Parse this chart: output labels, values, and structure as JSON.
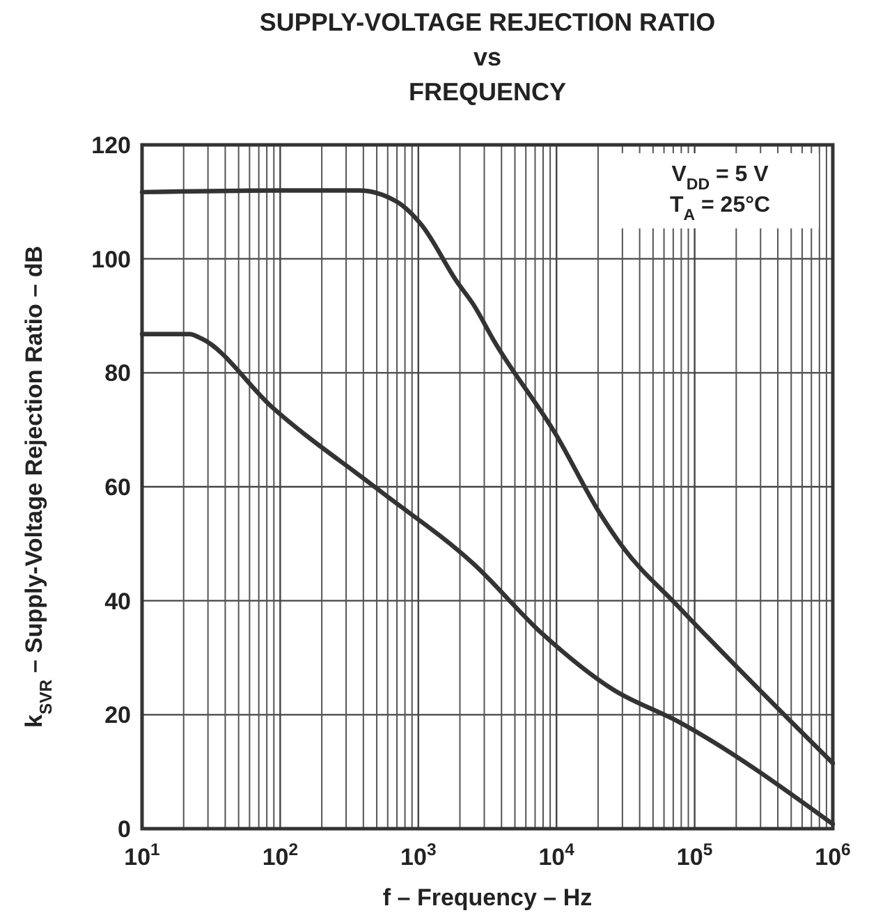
{
  "chart_data": {
    "type": "line",
    "title": "SUPPLY-VOLTAGE REJECTION RATIO\nvs\nFREQUENCY",
    "xlabel": "f – Frequency – Hz",
    "ylabel": "k$_{SVR}$ – Supply-Voltage Rejection Ratio – dB",
    "annotations": [
      "V$_{DD}$ = 5 V",
      "T$_{A}$ = 25°C"
    ],
    "log": "x",
    "grid": true,
    "line_style": "solid",
    "xlim": [
      10,
      1000000
    ],
    "ylim": [
      0,
      120
    ],
    "xticks": [
      {
        "value": 10,
        "label": "10$^{1}$"
      },
      {
        "value": 100,
        "label": "10$^{2}$"
      },
      {
        "value": 1000,
        "label": "10$^{3}$"
      },
      {
        "value": 10000,
        "label": "10$^{4}$"
      },
      {
        "value": 100000,
        "label": "10$^{5}$"
      },
      {
        "value": 1000000,
        "label": "10$^{6}$"
      }
    ],
    "yticks": [
      0,
      20,
      40,
      60,
      80,
      100,
      120
    ],
    "series": [
      {
        "color": "#333333",
        "x": [
          10,
          100,
          370,
          700,
          1050,
          1900,
          2500,
          3550,
          10000,
          20400,
          30000,
          76000,
          1000000
        ],
        "values": [
          111.7,
          112,
          112,
          110,
          106,
          96,
          92,
          85.5,
          69,
          55.5,
          49.5,
          39,
          11.5
        ]
      },
      {
        "color": "#333333",
        "x": [
          10,
          22,
          27,
          87,
          513,
          2500,
          7900,
          25700,
          76000,
          1000000
        ],
        "values": [
          86.8,
          86.8,
          86,
          74,
          59.5,
          46.5,
          34.2,
          24.4,
          18.8,
          0.8
        ]
      }
    ]
  }
}
